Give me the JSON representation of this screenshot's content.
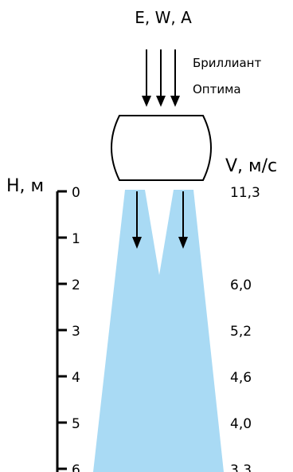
{
  "header": {
    "title": "E, W, A",
    "title_color": "#2f4f7f"
  },
  "product": {
    "line1": "Бриллиант",
    "line2": "Оптима"
  },
  "axes": {
    "height_label": "H, м",
    "velocity_label": "V, м/с"
  },
  "chart_data": {
    "type": "table",
    "heights": [
      "0",
      "1",
      "2",
      "3",
      "4",
      "5",
      "6"
    ],
    "velocities": [
      "11,3",
      "",
      "6,0",
      "5,2",
      "4,6",
      "4,0",
      "3,3"
    ],
    "h_unit": "м",
    "v_unit": "м/с"
  },
  "colors": {
    "jet": "#a9daf4",
    "line": "#000000"
  },
  "icons": {
    "nozzle": "air-curtain-nozzle-icon",
    "arrows": "down-arrow-icon"
  }
}
